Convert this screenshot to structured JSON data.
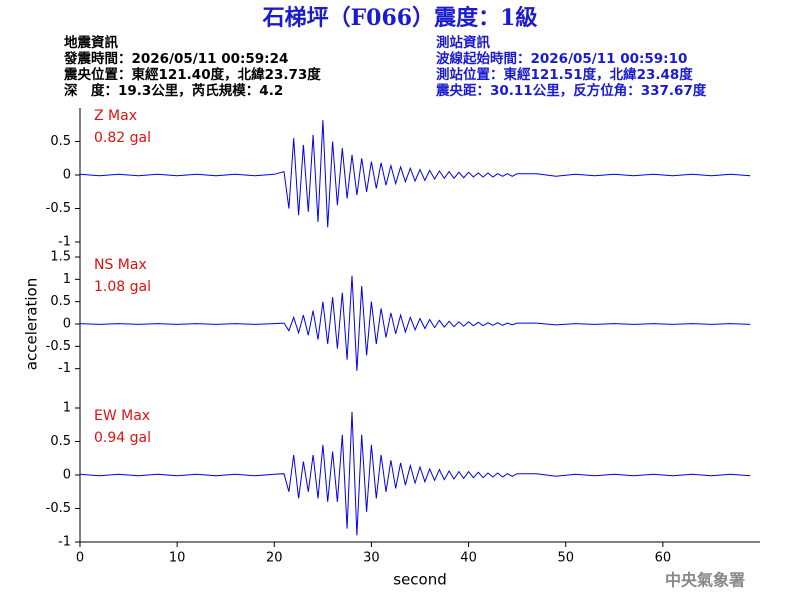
{
  "header": {
    "title": "石梯坪（F066）震度：1級",
    "left": [
      "地震資訊",
      "發震時間：2026/05/11 00:59:24",
      "震央位置：東經121.40度，北緯23.73度",
      "深　度：19.3公里，芮氏規模：4.2"
    ],
    "right": [
      "測站資訊",
      "波線起始時間：2026/05/11 00:59:10",
      "測站位置：東經121.51度，北緯23.48度",
      "震央距：30.11公里，反方位角：337.67度"
    ]
  },
  "footer": "中央氣象署",
  "chart_data": [
    {
      "type": "line",
      "peak_label": "0.82 gal",
      "xlim": [
        0,
        70
      ],
      "ylim": [
        -1,
        1
      ],
      "yticks": [
        0.5,
        0,
        -0.5,
        -1
      ],
      "x": [
        0,
        2,
        4,
        6,
        8,
        10,
        12,
        14,
        16,
        18,
        20,
        21,
        21.5,
        22,
        22.5,
        23,
        23.5,
        24,
        24.5,
        25,
        25.5,
        26,
        26.5,
        27,
        27.5,
        28,
        28.5,
        29,
        29.5,
        30,
        30.5,
        31,
        31.5,
        32,
        32.5,
        33,
        33.5,
        34,
        34.5,
        35,
        35.5,
        36,
        36.5,
        37,
        37.5,
        38,
        38.5,
        39,
        39.5,
        40,
        40.5,
        41,
        41.5,
        42,
        42.5,
        43,
        43.5,
        44,
        44.5,
        45,
        47,
        49,
        51,
        53,
        55,
        57,
        59,
        61,
        63,
        65,
        67,
        69
      ],
      "series": [
        {
          "name": "Z Max",
          "color": "#0000ee",
          "values": [
            0.01,
            -0.01,
            0.01,
            -0.01,
            0.01,
            -0.01,
            0.01,
            -0.01,
            0.01,
            -0.01,
            0.01,
            0.05,
            -0.5,
            0.55,
            -0.6,
            0.45,
            -0.55,
            0.6,
            -0.7,
            0.82,
            -0.78,
            0.5,
            -0.45,
            0.4,
            -0.35,
            0.3,
            -0.3,
            0.25,
            -0.25,
            0.2,
            -0.2,
            0.18,
            -0.15,
            0.14,
            -0.13,
            0.12,
            -0.1,
            0.1,
            -0.09,
            0.08,
            -0.08,
            0.07,
            -0.06,
            0.06,
            -0.05,
            0.05,
            -0.05,
            0.04,
            -0.04,
            0.04,
            -0.03,
            0.03,
            -0.03,
            0.03,
            -0.03,
            0.02,
            -0.02,
            0.02,
            -0.02,
            0.02,
            0.02,
            -0.02,
            0.01,
            -0.01,
            0.01,
            -0.01,
            0.01,
            -0.01,
            0.01,
            -0.01,
            0.01,
            -0.01
          ]
        }
      ]
    },
    {
      "type": "line",
      "peak_label": "1.08 gal",
      "xlim": [
        0,
        70
      ],
      "ylim": [
        -1.5,
        1.5
      ],
      "yticks": [
        1.5,
        1,
        0.5,
        0,
        -0.5,
        -1
      ],
      "ylabel": "acceleration",
      "x": [
        0,
        2,
        4,
        6,
        8,
        10,
        12,
        14,
        16,
        18,
        20,
        21,
        21.5,
        22,
        22.5,
        23,
        23.5,
        24,
        24.5,
        25,
        25.5,
        26,
        26.5,
        27,
        27.5,
        28,
        28.5,
        29,
        29.5,
        30,
        30.5,
        31,
        31.5,
        32,
        32.5,
        33,
        33.5,
        34,
        34.5,
        35,
        35.5,
        36,
        36.5,
        37,
        37.5,
        38,
        38.5,
        39,
        39.5,
        40,
        40.5,
        41,
        41.5,
        42,
        42.5,
        43,
        43.5,
        44,
        44.5,
        45,
        47,
        49,
        51,
        53,
        55,
        57,
        59,
        61,
        63,
        65,
        67,
        69
      ],
      "series": [
        {
          "name": "NS Max",
          "color": "#0000ee",
          "values": [
            0.01,
            -0.01,
            0.01,
            -0.01,
            0.01,
            -0.01,
            0.01,
            -0.01,
            0.01,
            -0.01,
            0.01,
            0.02,
            -0.15,
            0.15,
            -0.2,
            0.2,
            -0.25,
            0.3,
            -0.35,
            0.5,
            -0.45,
            0.6,
            -0.55,
            0.7,
            -0.8,
            1.08,
            -1.05,
            0.85,
            -0.7,
            0.5,
            -0.45,
            0.35,
            -0.3,
            0.25,
            -0.22,
            0.2,
            -0.18,
            0.15,
            -0.13,
            0.12,
            -0.1,
            0.1,
            -0.08,
            0.08,
            -0.07,
            0.06,
            -0.06,
            0.05,
            -0.05,
            0.05,
            -0.04,
            0.04,
            -0.04,
            0.03,
            -0.03,
            0.03,
            -0.03,
            0.02,
            -0.02,
            0.02,
            0.02,
            -0.02,
            0.01,
            -0.01,
            0.01,
            -0.01,
            0.01,
            -0.01,
            0.01,
            -0.01,
            0.01,
            -0.01
          ]
        }
      ]
    },
    {
      "type": "line",
      "peak_label": "0.94 gal",
      "xlim": [
        0,
        70
      ],
      "ylim": [
        -1,
        1
      ],
      "yticks": [
        1,
        0.5,
        0,
        -0.5,
        -1
      ],
      "xticks": [
        0,
        10,
        20,
        30,
        40,
        50,
        60
      ],
      "xlabel": "second",
      "x": [
        0,
        2,
        4,
        6,
        8,
        10,
        12,
        14,
        16,
        18,
        20,
        21,
        21.5,
        22,
        22.5,
        23,
        23.5,
        24,
        24.5,
        25,
        25.5,
        26,
        26.5,
        27,
        27.5,
        28,
        28.5,
        29,
        29.5,
        30,
        30.5,
        31,
        31.5,
        32,
        32.5,
        33,
        33.5,
        34,
        34.5,
        35,
        35.5,
        36,
        36.5,
        37,
        37.5,
        38,
        38.5,
        39,
        39.5,
        40,
        40.5,
        41,
        41.5,
        42,
        42.5,
        43,
        43.5,
        44,
        44.5,
        45,
        47,
        49,
        51,
        53,
        55,
        57,
        59,
        61,
        63,
        65,
        67,
        69
      ],
      "series": [
        {
          "name": "EW Max",
          "color": "#0000ee",
          "values": [
            0.01,
            -0.01,
            0.01,
            -0.01,
            0.01,
            -0.01,
            0.01,
            -0.01,
            0.01,
            -0.01,
            0.01,
            0.02,
            -0.25,
            0.3,
            -0.35,
            0.2,
            -0.25,
            0.3,
            -0.35,
            0.45,
            -0.4,
            0.35,
            -0.4,
            0.6,
            -0.8,
            0.94,
            -0.9,
            0.6,
            -0.55,
            0.45,
            -0.35,
            0.3,
            -0.25,
            0.22,
            -0.2,
            0.18,
            -0.15,
            0.14,
            -0.12,
            0.12,
            -0.1,
            0.09,
            -0.08,
            0.08,
            -0.07,
            0.06,
            -0.06,
            0.05,
            -0.05,
            0.05,
            -0.04,
            0.04,
            -0.04,
            0.03,
            -0.03,
            0.03,
            -0.03,
            0.02,
            -0.02,
            0.02,
            0.02,
            -0.02,
            0.01,
            -0.01,
            0.01,
            -0.01,
            0.01,
            -0.01,
            0.01,
            -0.01,
            0.01,
            -0.01
          ]
        }
      ]
    }
  ]
}
